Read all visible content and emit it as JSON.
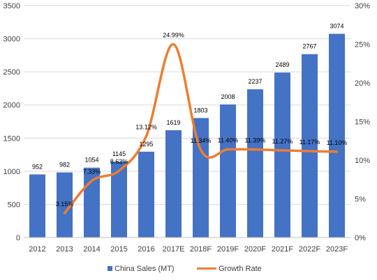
{
  "chart_data": {
    "type": "bar",
    "categories": [
      "2012",
      "2013",
      "2014",
      "2015",
      "2016",
      "2017E",
      "2018F",
      "2019F",
      "2020F",
      "2021F",
      "2022F",
      "2023F"
    ],
    "series": [
      {
        "name": "China Sales (MT)",
        "type": "bar",
        "axis": "left",
        "color": "#4472C4",
        "values": [
          952,
          982,
          1054,
          1145,
          1295,
          1619,
          1803,
          2008,
          2237,
          2489,
          2767,
          3074
        ],
        "labels": [
          "952",
          "982",
          "1054",
          "1145",
          "1295",
          "1619",
          "1803",
          "2008",
          "2237",
          "2489",
          "2767",
          "3074"
        ]
      },
      {
        "name": "Growth Rate",
        "type": "line",
        "axis": "right",
        "color": "#ED7D31",
        "values": [
          null,
          3.15,
          7.33,
          8.63,
          13.12,
          24.99,
          11.34,
          11.4,
          11.39,
          11.27,
          11.17,
          11.1
        ],
        "labels": [
          "",
          "3.15%",
          "7.33%",
          "8.63%",
          "13.12%",
          "24.99%",
          "11.34%",
          "11.40%",
          "11.39%",
          "11.27%",
          "11.17%",
          "11.10%"
        ]
      }
    ],
    "y_left": {
      "min": 0,
      "max": 3500,
      "ticks": [
        0,
        500,
        1000,
        1500,
        2000,
        2500,
        3000,
        3500
      ],
      "tick_labels": [
        "0",
        "500",
        "1000",
        "1500",
        "2000",
        "2500",
        "3000",
        "3500"
      ]
    },
    "y_right": {
      "min": 0,
      "max": 30,
      "ticks": [
        0,
        5,
        10,
        15,
        20,
        25,
        30
      ],
      "tick_labels": [
        "0%",
        "5%",
        "10%",
        "15%",
        "20%",
        "25%",
        "30%"
      ]
    },
    "grid": true,
    "legend_position": "bottom"
  }
}
